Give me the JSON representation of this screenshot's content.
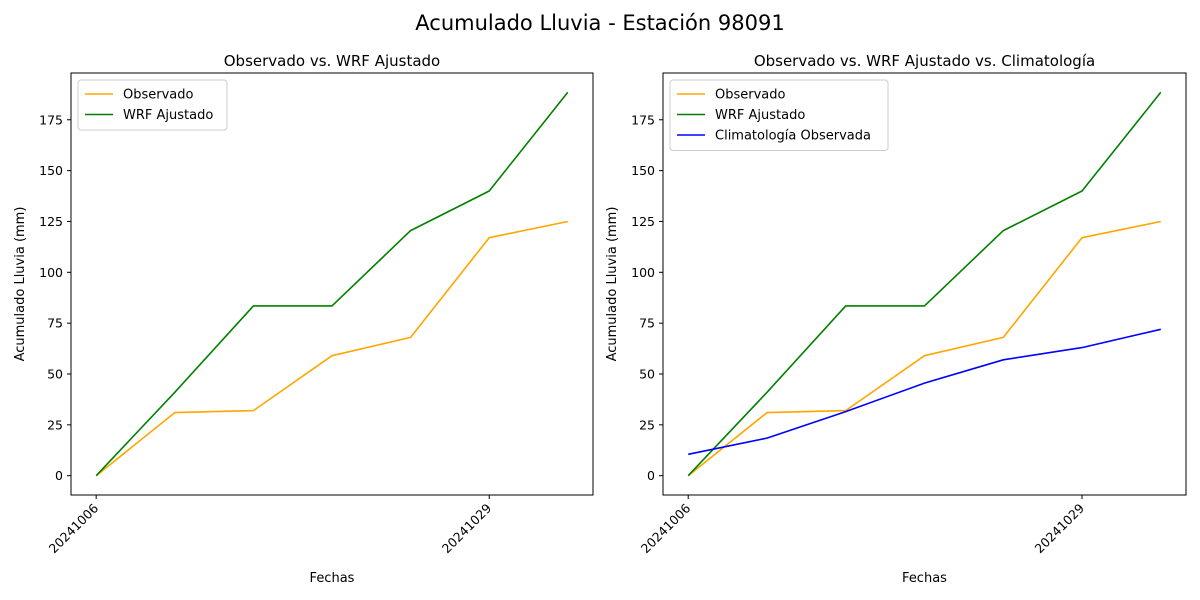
{
  "figure": {
    "title": "Acumulado Lluvia - Estación 98091"
  },
  "colors": {
    "observado": "#ffa500",
    "wrf": "#008000",
    "clima": "#0000ff"
  },
  "chart_data": [
    {
      "type": "line",
      "title": "Observado vs. WRF Ajustado",
      "xlabel": "Fechas",
      "ylabel": "Acumulado Lluvia (mm)",
      "x": [
        0,
        1,
        2,
        3,
        4,
        5,
        6
      ],
      "x_ticks": [
        {
          "x": 0,
          "label": "20241006"
        },
        {
          "x": 5,
          "label": "20241029"
        }
      ],
      "xlim": [
        -0.32,
        6.32
      ],
      "ylim": [
        -9.5,
        198
      ],
      "yticks": [
        0,
        25,
        50,
        75,
        100,
        125,
        150,
        175
      ],
      "legend_position": "top-left",
      "series": [
        {
          "name": "Observado",
          "color_key": "observado",
          "values": [
            0,
            31,
            32,
            59,
            68,
            117,
            125
          ]
        },
        {
          "name": "WRF Ajustado",
          "color_key": "wrf",
          "values": [
            0,
            41,
            83.5,
            83.5,
            120.5,
            140,
            188.5
          ]
        }
      ]
    },
    {
      "type": "line",
      "title": "Observado vs. WRF Ajustado vs. Climatología",
      "xlabel": "Fechas",
      "ylabel": "Acumulado Lluvia (mm)",
      "x": [
        0,
        1,
        2,
        3,
        4,
        5,
        6
      ],
      "x_ticks": [
        {
          "x": 0,
          "label": "20241006"
        },
        {
          "x": 5,
          "label": "20241029"
        }
      ],
      "xlim": [
        -0.32,
        6.32
      ],
      "ylim": [
        -9.5,
        198
      ],
      "yticks": [
        0,
        25,
        50,
        75,
        100,
        125,
        150,
        175
      ],
      "legend_position": "top-left",
      "series": [
        {
          "name": "Observado",
          "color_key": "observado",
          "values": [
            0,
            31,
            32,
            59,
            68,
            117,
            125
          ]
        },
        {
          "name": "WRF Ajustado",
          "color_key": "wrf",
          "values": [
            0,
            41,
            83.5,
            83.5,
            120.5,
            140,
            188.5
          ]
        },
        {
          "name": "Climatología Observada",
          "color_key": "clima",
          "values": [
            10.5,
            18.5,
            31.5,
            45.5,
            57,
            63,
            72
          ]
        }
      ]
    }
  ]
}
